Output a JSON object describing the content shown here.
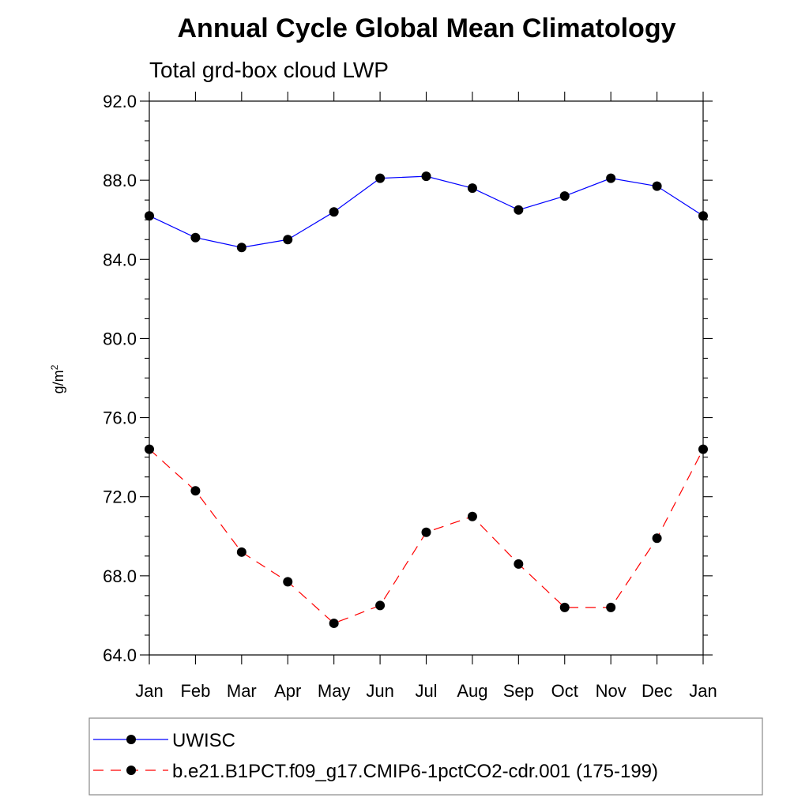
{
  "chart_data": {
    "type": "line",
    "title": "Annual Cycle Global Mean Climatology",
    "subtitle": "Total grd-box cloud LWP",
    "ylabel": "g/m",
    "ylabel_superscript": "2",
    "xlabel": "",
    "categories": [
      "Jan",
      "Feb",
      "Mar",
      "Apr",
      "May",
      "Jun",
      "Jul",
      "Aug",
      "Sep",
      "Oct",
      "Nov",
      "Dec",
      "Jan"
    ],
    "ylim": [
      64.0,
      92.0
    ],
    "yticks": [
      64.0,
      68.0,
      72.0,
      76.0,
      80.0,
      84.0,
      88.0,
      92.0
    ],
    "ytick_labels": [
      "64.0",
      "68.0",
      "72.0",
      "76.0",
      "80.0",
      "84.0",
      "88.0",
      "92.0"
    ],
    "grid": false,
    "legend_position": "bottom",
    "series": [
      {
        "name": "UWISC",
        "color": "#0000ff",
        "line_style": "solid",
        "marker": "filled-circle",
        "values": [
          86.2,
          85.1,
          84.6,
          85.0,
          86.4,
          88.1,
          88.2,
          87.6,
          86.5,
          87.2,
          88.1,
          87.7,
          86.2
        ]
      },
      {
        "name": "b.e21.B1PCT.f09_g17.CMIP6-1pctCO2-cdr.001 (175-199)",
        "color": "#ff0000",
        "line_style": "dashed",
        "marker": "filled-circle",
        "values": [
          74.4,
          72.3,
          69.2,
          67.7,
          65.6,
          66.5,
          70.2,
          71.0,
          68.6,
          66.4,
          66.4,
          69.9,
          74.4
        ]
      }
    ]
  }
}
